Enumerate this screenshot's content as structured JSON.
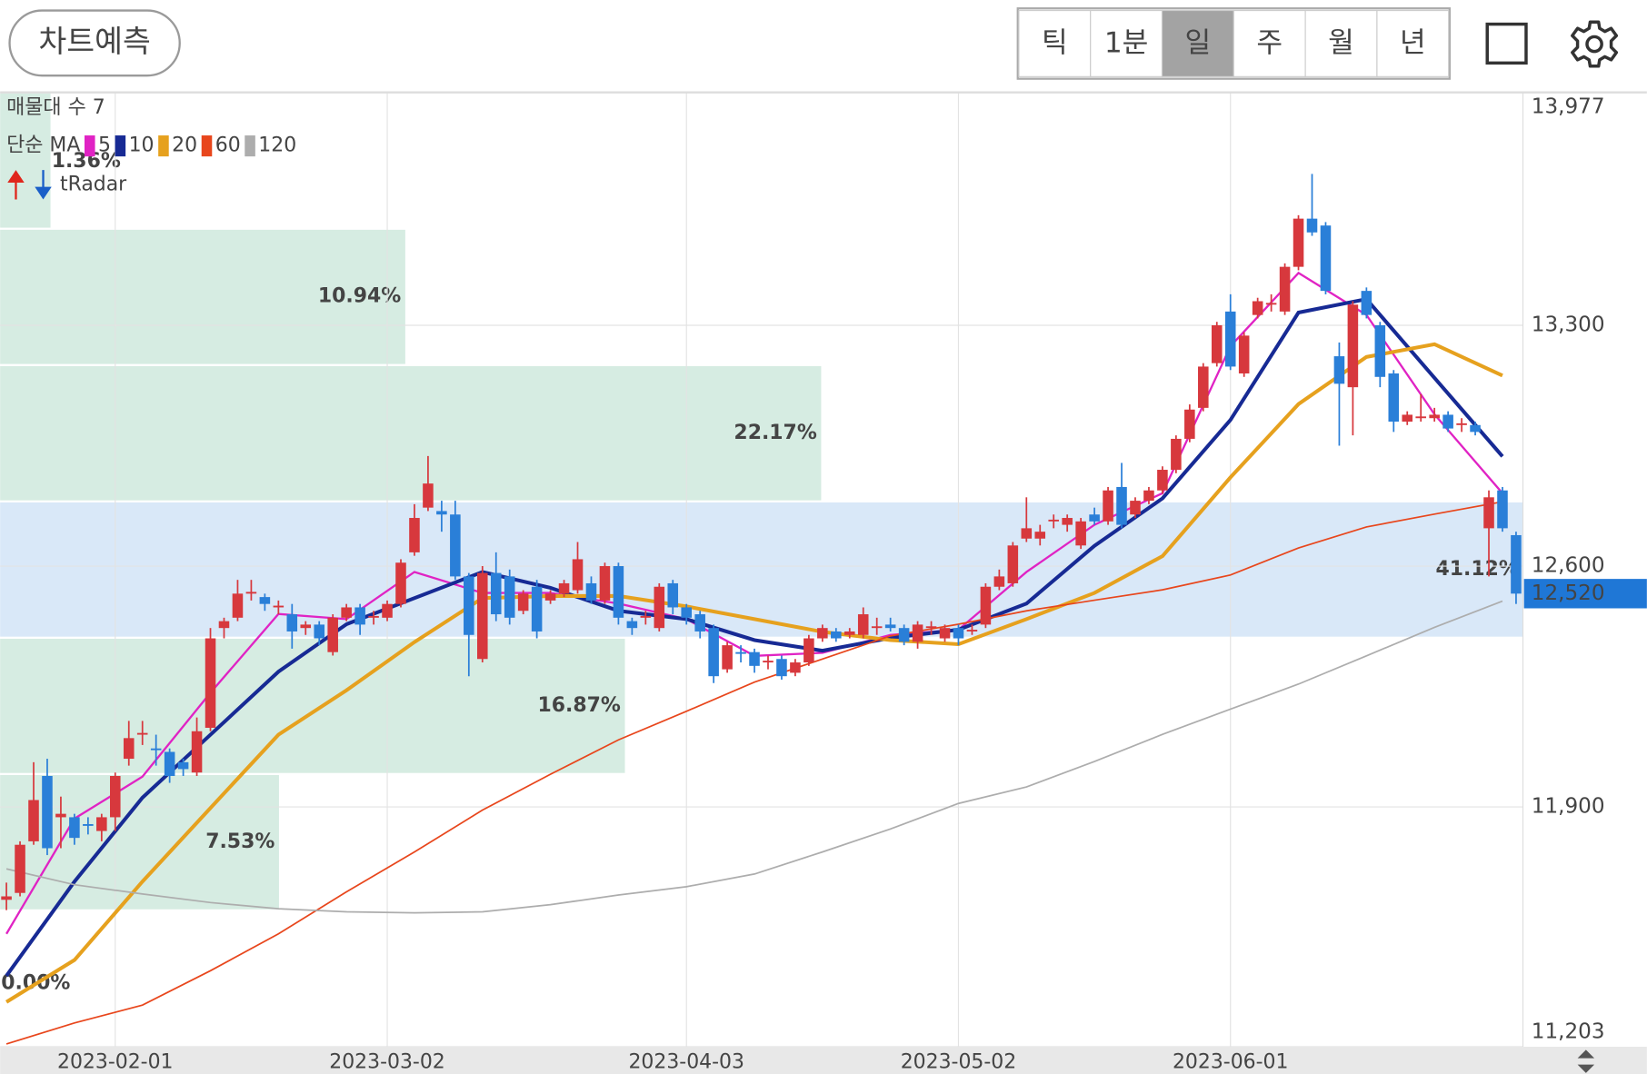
{
  "header": {
    "button": "차트예측",
    "tabs": [
      "틱",
      "1분",
      "일",
      "주",
      "월",
      "년"
    ],
    "selected_tab": 2
  },
  "chart_data": {
    "type": "candlestick",
    "categories": [
      null,
      null,
      null,
      null,
      null,
      null,
      null,
      null,
      "2023-02-01",
      null,
      null,
      null,
      null,
      null,
      null,
      null,
      null,
      null,
      null,
      null,
      null,
      null,
      null,
      null,
      null,
      null,
      null,
      null,
      "2023-03-02",
      null,
      null,
      null,
      null,
      null,
      null,
      null,
      null,
      null,
      null,
      null,
      null,
      null,
      null,
      null,
      null,
      null,
      null,
      null,
      null,
      null,
      "2023-04-03",
      null,
      null,
      null,
      null,
      null,
      null,
      null,
      null,
      null,
      null,
      null,
      null,
      null,
      null,
      null,
      null,
      null,
      null,
      null,
      "2023-05-02",
      null,
      null,
      null,
      null,
      null,
      null,
      null,
      null,
      null,
      null,
      null,
      null,
      null,
      null,
      null,
      null,
      null,
      null,
      null,
      "2023-06-01",
      null,
      null,
      null,
      null,
      null,
      null,
      null,
      null,
      null,
      null,
      null,
      null,
      null,
      null,
      null,
      null,
      null,
      null,
      null,
      null,
      null
    ],
    "open": [
      11630,
      11650,
      11800,
      11990,
      11870,
      11870,
      11850,
      11830,
      11870,
      12040,
      12110,
      12070,
      12060,
      12030,
      12000,
      12130,
      12420,
      12450,
      12520,
      12510,
      12480,
      12460,
      12420,
      12430,
      12350,
      12450,
      12480,
      12450,
      12450,
      12490,
      12640,
      12770,
      12760,
      12750,
      12570,
      12330,
      12580,
      12570,
      12470,
      12540,
      12500,
      12520,
      12530,
      12550,
      12500,
      12600,
      12440,
      12450,
      12420,
      12550,
      12480,
      12460,
      12420,
      12300,
      12350,
      12350,
      12320,
      12330,
      12290,
      12320,
      12390,
      12410,
      12400,
      12400,
      12420,
      12430,
      12420,
      12380,
      12420,
      12390,
      12420,
      12410,
      12430,
      12540,
      12550,
      12680,
      12680,
      12730,
      12720,
      12660,
      12750,
      12730,
      12830,
      12750,
      12790,
      12820,
      12880,
      12970,
      13060,
      13190,
      13340,
      13160,
      13330,
      13360,
      13340,
      13470,
      13610,
      13590,
      13210,
      13120,
      13400,
      13300,
      13160,
      13020,
      13030,
      13030,
      13040,
      13010,
      13010,
      12710,
      12820,
      12690
    ],
    "high": [
      11680,
      11800,
      12030,
      12040,
      11930,
      11880,
      11870,
      11880,
      12000,
      12150,
      12150,
      12110,
      12070,
      12040,
      12160,
      12420,
      12450,
      12560,
      12560,
      12520,
      12500,
      12490,
      12440,
      12440,
      12460,
      12490,
      12490,
      12470,
      12500,
      12620,
      12780,
      12920,
      12790,
      12790,
      12580,
      12600,
      12640,
      12590,
      12530,
      12560,
      12530,
      12560,
      12670,
      12570,
      12610,
      12610,
      12450,
      12470,
      12550,
      12560,
      12490,
      12470,
      12430,
      12380,
      12370,
      12360,
      12340,
      12340,
      12330,
      12400,
      12430,
      12420,
      12420,
      12480,
      12450,
      12450,
      12430,
      12440,
      12440,
      12430,
      12430,
      12430,
      12550,
      12590,
      12670,
      12800,
      12720,
      12750,
      12750,
      12740,
      12770,
      12830,
      12900,
      12800,
      12830,
      12890,
      12980,
      13070,
      13190,
      13310,
      13390,
      13280,
      13380,
      13390,
      13480,
      13620,
      13740,
      13600,
      13250,
      13370,
      13410,
      13310,
      13170,
      13050,
      13100,
      13060,
      13050,
      13030,
      13020,
      12820,
      12830,
      12700
    ],
    "low": [
      11600,
      11640,
      11790,
      11760,
      11780,
      11790,
      11820,
      11800,
      11830,
      12020,
      12080,
      12020,
      11970,
      11990,
      11990,
      12120,
      12390,
      12440,
      12500,
      12470,
      12460,
      12360,
      12400,
      12370,
      12340,
      12440,
      12400,
      12430,
      12440,
      12480,
      12630,
      12760,
      12700,
      12560,
      12280,
      12320,
      12440,
      12430,
      12460,
      12390,
      12490,
      12510,
      12520,
      12490,
      12490,
      12430,
      12400,
      12430,
      12410,
      12460,
      12430,
      12390,
      12260,
      12290,
      12320,
      12290,
      12300,
      12270,
      12280,
      12310,
      12380,
      12380,
      12390,
      12390,
      12400,
      12410,
      12370,
      12360,
      12400,
      12380,
      12370,
      12400,
      12420,
      12530,
      12540,
      12670,
      12660,
      12710,
      12700,
      12650,
      12720,
      12720,
      12710,
      12740,
      12780,
      12810,
      12870,
      12960,
      13050,
      13180,
      13170,
      13150,
      13320,
      13340,
      13330,
      13460,
      13560,
      13390,
      12950,
      12980,
      13320,
      13120,
      12990,
      13010,
      13020,
      13020,
      12990,
      12990,
      12980,
      12570,
      12700,
      12490
    ],
    "close": [
      11640,
      11790,
      11920,
      11780,
      11880,
      11810,
      11845,
      11870,
      11990,
      12100,
      12115,
      12065,
      11990,
      12010,
      12120,
      12390,
      12440,
      12520,
      12525,
      12490,
      12485,
      12410,
      12430,
      12390,
      12450,
      12480,
      12430,
      12455,
      12490,
      12610,
      12740,
      12840,
      12750,
      12570,
      12400,
      12580,
      12460,
      12450,
      12520,
      12410,
      12520,
      12550,
      12620,
      12500,
      12600,
      12450,
      12420,
      12455,
      12540,
      12480,
      12450,
      12410,
      12280,
      12370,
      12345,
      12310,
      12325,
      12280,
      12320,
      12390,
      12420,
      12390,
      12410,
      12460,
      12425,
      12420,
      12380,
      12430,
      12425,
      12420,
      12390,
      12415,
      12540,
      12570,
      12660,
      12710,
      12700,
      12735,
      12740,
      12730,
      12730,
      12820,
      12720,
      12790,
      12820,
      12880,
      12970,
      13055,
      13180,
      13300,
      13180,
      13270,
      13370,
      13365,
      13470,
      13610,
      13570,
      13400,
      13130,
      13360,
      13330,
      13150,
      13020,
      13040,
      13035,
      13040,
      13000,
      13015,
      12990,
      12800,
      12710,
      12520
    ],
    "up_color": "#d7383d",
    "down_color": "#2a7fd8",
    "ylim": [
      11203,
      13977
    ],
    "yticks": [
      {
        "value": 11203,
        "label": "11,203"
      },
      {
        "value": 11900,
        "label": "11,900"
      },
      {
        "value": 12600,
        "label": "12,600"
      },
      {
        "value": 13300,
        "label": "13,300"
      },
      {
        "value": 13977,
        "label": "13,977"
      }
    ],
    "grid": true,
    "last_price": {
      "value": 12520,
      "label": "12,520"
    },
    "last_price_color": "#1f77d6",
    "ma_title": "단순 MA",
    "ma_series": [
      {
        "name": "5",
        "color": "#e023c4",
        "x": [
          0,
          5,
          10,
          15,
          20,
          25,
          30,
          35,
          40,
          45,
          50,
          55,
          60,
          65,
          70,
          75,
          80,
          85,
          90,
          95,
          100,
          105,
          110
        ],
        "values": [
          11531,
          11866,
          11988,
          12232,
          12461,
          12446,
          12583,
          12522,
          12522,
          12491,
          12446,
          12339,
          12348,
          12400,
          12415,
          12583,
          12720,
          12812,
          13239,
          13452,
          13330,
          13041,
          12812
        ]
      },
      {
        "name": "10",
        "color": "#172a94",
        "x": [
          0,
          5,
          10,
          15,
          20,
          25,
          30,
          35,
          40,
          45,
          50,
          55,
          60,
          65,
          70,
          75,
          80,
          85,
          90,
          95,
          100,
          105,
          110
        ],
        "values": [
          11409,
          11683,
          11927,
          12110,
          12293,
          12431,
          12507,
          12583,
          12537,
          12470,
          12446,
          12385,
          12354,
          12391,
          12415,
          12491,
          12659,
          12797,
          13025,
          13337,
          13376,
          13147,
          12919
        ]
      },
      {
        "name": "20",
        "color": "#e6a11e",
        "x": [
          0,
          5,
          10,
          15,
          20,
          25,
          30,
          35,
          40,
          45,
          50,
          55,
          60,
          65,
          70,
          75,
          80,
          85,
          90,
          95,
          100,
          105,
          110
        ],
        "values": [
          11333,
          11455,
          11683,
          11897,
          12110,
          12239,
          12379,
          12507,
          12513,
          12513,
          12483,
          12446,
          12409,
          12385,
          12373,
          12446,
          12522,
          12629,
          12858,
          13071,
          13208,
          13245,
          13154
        ]
      },
      {
        "name": "60",
        "color": "#e8461c",
        "x": [
          0,
          5,
          10,
          15,
          20,
          25,
          30,
          35,
          40,
          45,
          50,
          55,
          60,
          65,
          70,
          75,
          80,
          85,
          90,
          95,
          100,
          105,
          110
        ],
        "values": [
          11211,
          11272,
          11324,
          11424,
          11531,
          11653,
          11769,
          11891,
          11995,
          12095,
          12178,
          12263,
          12330,
          12397,
          12431,
          12470,
          12501,
          12531,
          12574,
          12653,
          12714,
          12751,
          12787
        ]
      },
      {
        "name": "120",
        "color": "#adadad",
        "x": [
          0,
          5,
          10,
          15,
          20,
          25,
          30,
          35,
          40,
          45,
          50,
          55,
          60,
          65,
          70,
          75,
          80,
          85,
          90,
          95,
          100,
          105,
          110
        ],
        "values": [
          11720,
          11674,
          11647,
          11622,
          11604,
          11595,
          11592,
          11595,
          11616,
          11644,
          11668,
          11705,
          11769,
          11836,
          11910,
          11958,
          12032,
          12111,
          12184,
          12257,
          12339,
          12422,
          12498
        ]
      }
    ],
    "volume_profile": {
      "title": "매물대 수 7",
      "color": "#d6ece2",
      "highlight_color": "#d9e8f8",
      "label_color": "#188a5a",
      "highlight_label_color": "#1f77d6",
      "values": [
        0.0,
        7.53,
        16.87,
        41.12,
        22.17,
        10.94,
        1.36
      ],
      "value_labels": [
        "0.00%",
        "7.53%",
        "16.87%",
        "41.12%",
        "22.17%",
        "10.94%",
        "1.36%"
      ]
    },
    "indicator": "tRadar"
  }
}
